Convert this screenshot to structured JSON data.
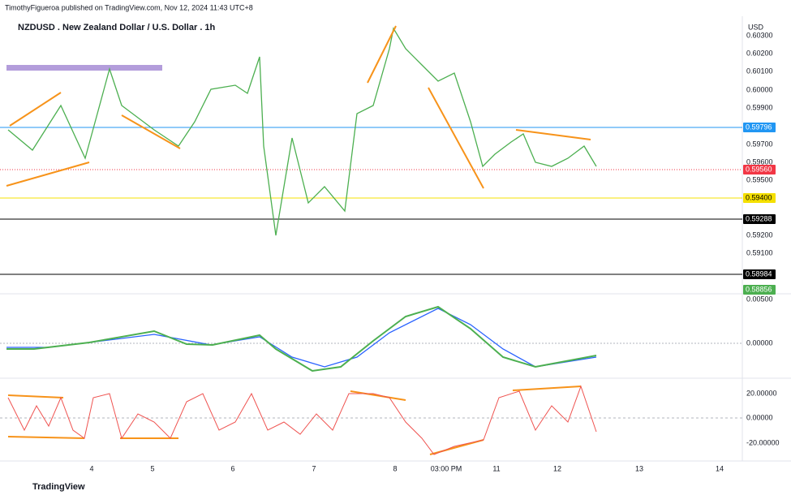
{
  "header": {
    "publisher": "TimothyFigueroa published on TradingView.com, Nov 12, 2024 11:43 UTC+8",
    "symbol": "NZDUSD . New Zealand Dollar / U.S. Dollar . 1h",
    "currency": "USD"
  },
  "price_axis": {
    "labels": [
      "0.60300",
      "0.60200",
      "0.60100",
      "0.60000",
      "0.59900",
      "0.59700",
      "0.59600",
      "0.59500",
      "0.59200",
      "0.59100"
    ]
  },
  "price_tags": [
    {
      "label": "0.59796"
    },
    {
      "label": "0.59560"
    },
    {
      "label": "0.59400"
    },
    {
      "label": "0.59288"
    },
    {
      "label": "0.58984"
    },
    {
      "label": "0.58856"
    }
  ],
  "macd_axis": {
    "labels": [
      "0.00500",
      "0.00000"
    ]
  },
  "rsi_axis": {
    "labels": [
      "20.00000",
      "0.00000",
      "-20.00000"
    ]
  },
  "time_axis": {
    "labels": [
      "4",
      "5",
      "6",
      "7",
      "8",
      "03:00 PM",
      "11",
      "12",
      "13",
      "14"
    ]
  },
  "footer": {
    "brand": "TradingView"
  }
}
